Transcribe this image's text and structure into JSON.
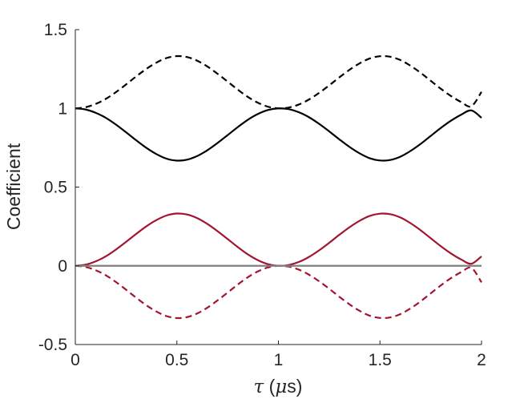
{
  "chart_data": {
    "type": "line",
    "title": "",
    "xlabel": "τ (μs)",
    "xlabel_parts": {
      "tau": "τ",
      "open": " (",
      "mu": "μ",
      "unit": "s)"
    },
    "ylabel": "Coefficient",
    "xlim": [
      0,
      2
    ],
    "ylim": [
      -0.5,
      1.5
    ],
    "xticks": [
      0,
      0.5,
      1,
      1.5,
      2
    ],
    "xtick_labels": [
      "0",
      "0.5",
      "1",
      "1.5",
      "2"
    ],
    "yticks": [
      -0.5,
      0,
      0.5,
      1,
      1.5
    ],
    "ytick_labels": [
      "-0.5",
      "0",
      "0.5",
      "1",
      "1.5"
    ],
    "grid": false,
    "legend": "none",
    "colors": {
      "black": "#000000",
      "red": "#a2142f",
      "gray": "#808080"
    },
    "x": [
      0,
      0.05,
      0.1,
      0.15,
      0.2,
      0.25,
      0.3,
      0.35,
      0.4,
      0.45,
      0.5,
      0.55,
      0.6,
      0.65,
      0.7,
      0.75,
      0.8,
      0.85,
      0.9,
      0.95,
      1.0,
      1.05,
      1.1,
      1.15,
      1.2,
      1.25,
      1.3,
      1.35,
      1.4,
      1.45,
      1.5,
      1.55,
      1.6,
      1.65,
      1.7,
      1.75,
      1.8,
      1.85,
      1.9,
      1.95,
      2.0
    ],
    "series": [
      {
        "style": "solid",
        "color": "#000000",
        "values": [
          1.0,
          0.993,
          0.972,
          0.94,
          0.897,
          0.848,
          0.797,
          0.749,
          0.709,
          0.68,
          0.668,
          0.674,
          0.697,
          0.734,
          0.78,
          0.83,
          0.881,
          0.928,
          0.965,
          0.99,
          1.0,
          0.995,
          0.976,
          0.944,
          0.902,
          0.854,
          0.803,
          0.755,
          0.714,
          0.683,
          0.669,
          0.672,
          0.693,
          0.729,
          0.774,
          0.825,
          0.876,
          0.922,
          0.96,
          0.987,
          0.94
        ]
      },
      {
        "style": "dashed",
        "color": "#000000",
        "values": [
          1.0,
          1.007,
          1.028,
          1.06,
          1.103,
          1.152,
          1.203,
          1.251,
          1.291,
          1.32,
          1.332,
          1.326,
          1.303,
          1.266,
          1.22,
          1.17,
          1.119,
          1.072,
          1.035,
          1.01,
          1.0,
          1.005,
          1.024,
          1.056,
          1.098,
          1.146,
          1.197,
          1.245,
          1.286,
          1.317,
          1.331,
          1.328,
          1.307,
          1.271,
          1.226,
          1.175,
          1.124,
          1.078,
          1.04,
          1.013,
          1.105
        ]
      },
      {
        "style": "solid",
        "color": "#a2142f",
        "values": [
          0.0,
          0.007,
          0.028,
          0.06,
          0.103,
          0.152,
          0.203,
          0.251,
          0.291,
          0.32,
          0.332,
          0.326,
          0.303,
          0.266,
          0.22,
          0.17,
          0.119,
          0.072,
          0.035,
          0.01,
          0.0,
          0.005,
          0.024,
          0.056,
          0.098,
          0.146,
          0.197,
          0.245,
          0.286,
          0.317,
          0.331,
          0.328,
          0.307,
          0.271,
          0.226,
          0.175,
          0.124,
          0.078,
          0.04,
          0.013,
          0.06
        ]
      },
      {
        "style": "dashed",
        "color": "#a2142f",
        "values": [
          0.0,
          -0.007,
          -0.028,
          -0.06,
          -0.103,
          -0.152,
          -0.203,
          -0.251,
          -0.291,
          -0.32,
          -0.332,
          -0.326,
          -0.303,
          -0.266,
          -0.22,
          -0.17,
          -0.119,
          -0.072,
          -0.035,
          -0.01,
          0.0,
          -0.005,
          -0.024,
          -0.056,
          -0.098,
          -0.146,
          -0.197,
          -0.245,
          -0.286,
          -0.317,
          -0.331,
          -0.328,
          -0.307,
          -0.271,
          -0.226,
          -0.175,
          -0.124,
          -0.078,
          -0.04,
          -0.013,
          -0.105
        ]
      },
      {
        "style": "solid",
        "color": "#808080",
        "values": [
          0,
          0,
          0,
          0,
          0,
          0,
          0,
          0,
          0,
          0,
          0,
          0,
          0,
          0,
          0,
          0,
          0,
          0,
          0,
          0,
          0,
          0,
          0,
          0,
          0,
          0,
          0,
          0,
          0,
          0,
          0,
          0,
          0,
          0,
          0,
          0,
          0,
          0,
          0,
          0,
          0
        ]
      }
    ]
  }
}
